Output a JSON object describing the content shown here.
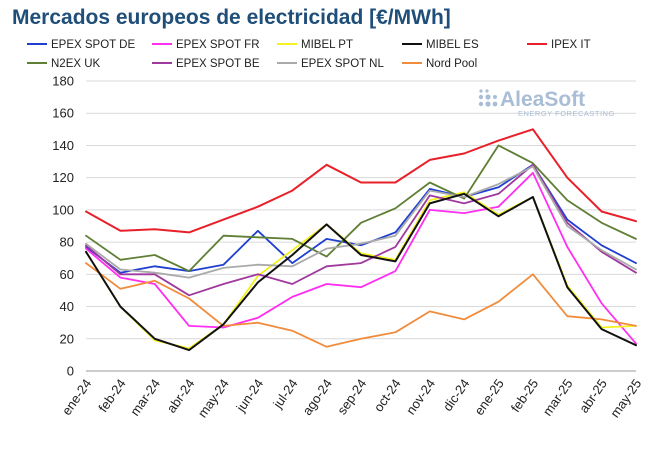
{
  "chart_data": {
    "type": "line",
    "title": "Mercados europeos de electricidad [€/MWh]",
    "xlabel": "",
    "ylabel": "",
    "ylim": [
      0,
      180
    ],
    "yticks": [
      0,
      20,
      40,
      60,
      80,
      100,
      120,
      140,
      160,
      180
    ],
    "grid": true,
    "legend": "top",
    "categories": [
      "ene-24",
      "feb-24",
      "mar-24",
      "abr-24",
      "may-24",
      "jun-24",
      "jul-24",
      "ago-24",
      "sep-24",
      "oct-24",
      "nov-24",
      "dic-24",
      "ene-25",
      "feb-25",
      "mar-25",
      "abr-25",
      "may-25"
    ],
    "series": [
      {
        "name": "EPEX SPOT DE",
        "color": "#1f3fd1",
        "values": [
          77,
          61,
          65,
          62,
          66,
          87,
          67,
          82,
          78,
          86,
          113,
          108,
          114,
          128,
          94,
          78,
          67
        ]
      },
      {
        "name": "EPEX SPOT FR",
        "color": "#ff2ef0",
        "values": [
          76,
          58,
          54,
          28,
          27,
          33,
          46,
          54,
          52,
          62,
          100,
          98,
          102,
          123,
          77,
          42,
          17
        ]
      },
      {
        "name": "MIBEL PT",
        "color": "#f2f21e",
        "values": [
          74,
          40,
          19,
          14,
          29,
          59,
          75,
          91,
          73,
          69,
          106,
          111,
          97,
          108,
          53,
          27,
          28
        ]
      },
      {
        "name": "MIBEL ES",
        "color": "#111111",
        "values": [
          74,
          40,
          20,
          13,
          29,
          55,
          72,
          91,
          72,
          68,
          104,
          110,
          96,
          108,
          52,
          26,
          16
        ]
      },
      {
        "name": "IPEX IT",
        "color": "#e8202a",
        "values": [
          99,
          87,
          88,
          86,
          94,
          102,
          112,
          128,
          117,
          117,
          131,
          135,
          143,
          150,
          120,
          99,
          93
        ]
      },
      {
        "name": "N2EX UK",
        "color": "#5e7f34",
        "values": [
          84,
          69,
          72,
          62,
          84,
          83,
          82,
          71,
          92,
          101,
          117,
          107,
          140,
          129,
          106,
          92,
          82
        ]
      },
      {
        "name": "EPEX SPOT BE",
        "color": "#a0399e",
        "values": [
          78,
          60,
          60,
          47,
          54,
          60,
          54,
          65,
          67,
          77,
          109,
          104,
          110,
          128,
          92,
          74,
          61
        ]
      },
      {
        "name": "EPEX SPOT NL",
        "color": "#aaaaaa",
        "values": [
          79,
          63,
          61,
          58,
          64,
          66,
          65,
          76,
          79,
          84,
          112,
          108,
          116,
          127,
          90,
          75,
          63
        ]
      },
      {
        "name": "Nord Pool",
        "color": "#f08c3c",
        "values": [
          67,
          51,
          56,
          45,
          28,
          30,
          25,
          15,
          20,
          24,
          37,
          32,
          43,
          60,
          34,
          32,
          28
        ]
      }
    ]
  },
  "logo": {
    "name": "AleaSoft",
    "tagline": "ENERGY FORECASTING"
  }
}
